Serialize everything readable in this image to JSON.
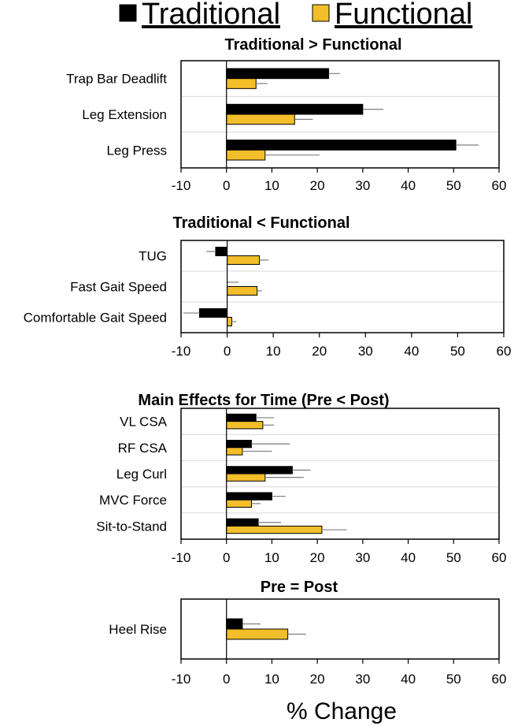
{
  "legend": {
    "traditional_label": "Traditional",
    "functional_label": "Functional"
  },
  "colors": {
    "traditional": "#000000",
    "functional": "#F2BE2A",
    "errorbar": "#7f7f7f",
    "separator": "#d9d9d9"
  },
  "chart_data": [
    {
      "type": "bar",
      "orientation": "horizontal",
      "title": "Traditional > Functional",
      "categories": [
        "Trap Bar Deadlift",
        "Leg Extension",
        "Leg Press"
      ],
      "series": [
        {
          "name": "Traditional",
          "values": [
            22.5,
            30,
            50.5
          ],
          "errors": [
            2.5,
            4.5,
            5
          ]
        },
        {
          "name": "Functional",
          "values": [
            6.5,
            15,
            8.5
          ],
          "errors": [
            2.5,
            4,
            12
          ]
        }
      ],
      "xlim": [
        -10,
        60
      ],
      "xticks": [
        -10,
        0,
        10,
        20,
        30,
        40,
        50,
        60
      ],
      "xlabel": ""
    },
    {
      "type": "bar",
      "orientation": "horizontal",
      "title": "Traditional < Functional",
      "categories": [
        "TUG",
        "Fast Gait Speed",
        "Comfortable Gait Speed"
      ],
      "series": [
        {
          "name": "Traditional",
          "values": [
            -2.5,
            0,
            -6
          ],
          "errors": [
            2,
            2.5,
            3.5
          ]
        },
        {
          "name": "Functional",
          "values": [
            7,
            6.5,
            1
          ],
          "errors": [
            2,
            1,
            1
          ]
        }
      ],
      "xlim": [
        -10,
        60
      ],
      "xticks": [
        -10,
        0,
        10,
        20,
        30,
        40,
        50,
        60
      ],
      "xlabel": ""
    },
    {
      "type": "bar",
      "orientation": "horizontal",
      "title": "Main Effects for Time (Pre < Post)",
      "categories": [
        "VL CSA",
        "RF CSA",
        "Leg Curl",
        "MVC Force",
        "Sit-to-Stand"
      ],
      "series": [
        {
          "name": "Traditional",
          "values": [
            6.5,
            5.5,
            14.5,
            10,
            7
          ],
          "errors": [
            4,
            8.5,
            4,
            3,
            5
          ]
        },
        {
          "name": "Functional",
          "values": [
            8,
            3.5,
            8.5,
            5.5,
            21
          ],
          "errors": [
            2.5,
            6.5,
            8.5,
            2,
            5.5
          ]
        }
      ],
      "xlim": [
        -10,
        60
      ],
      "xticks": [
        -10,
        0,
        10,
        20,
        30,
        40,
        50,
        60
      ],
      "xlabel": ""
    },
    {
      "type": "bar",
      "orientation": "horizontal",
      "title": "Pre = Post",
      "categories": [
        "Heel Rise"
      ],
      "series": [
        {
          "name": "Traditional",
          "values": [
            3.5
          ],
          "errors": [
            4
          ]
        },
        {
          "name": "Functional",
          "values": [
            13.5
          ],
          "errors": [
            4
          ]
        }
      ],
      "xlim": [
        -10,
        60
      ],
      "xticks": [
        -10,
        0,
        10,
        20,
        30,
        40,
        50,
        60
      ],
      "xlabel": "% Change"
    }
  ]
}
